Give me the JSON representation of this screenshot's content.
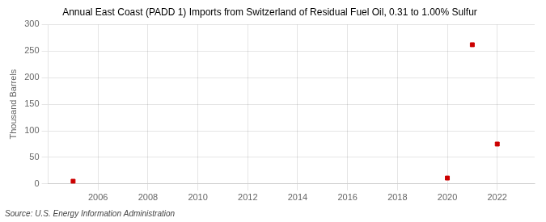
{
  "chart_data": {
    "type": "scatter",
    "title": "Annual East Coast (PADD 1) Imports from Switzerland of Residual Fuel Oil, 0.31 to 1.00% Sulfur",
    "ylabel": "Thousand Barrels",
    "annotations": [
      "Source: U.S. Energy Information Administration"
    ],
    "x": [
      2005,
      2020,
      2021,
      2022
    ],
    "values": [
      5,
      11,
      262,
      75
    ],
    "color": "#cc0000",
    "marker": "square",
    "xlim": [
      2004.0,
      2023.5
    ],
    "xticks": [
      2006,
      2008,
      2010,
      2012,
      2014,
      2016,
      2018,
      2020,
      2022
    ],
    "ylim": [
      0,
      300
    ],
    "yticks": [
      0,
      50,
      100,
      150,
      200,
      250,
      300
    ],
    "grid": true
  }
}
